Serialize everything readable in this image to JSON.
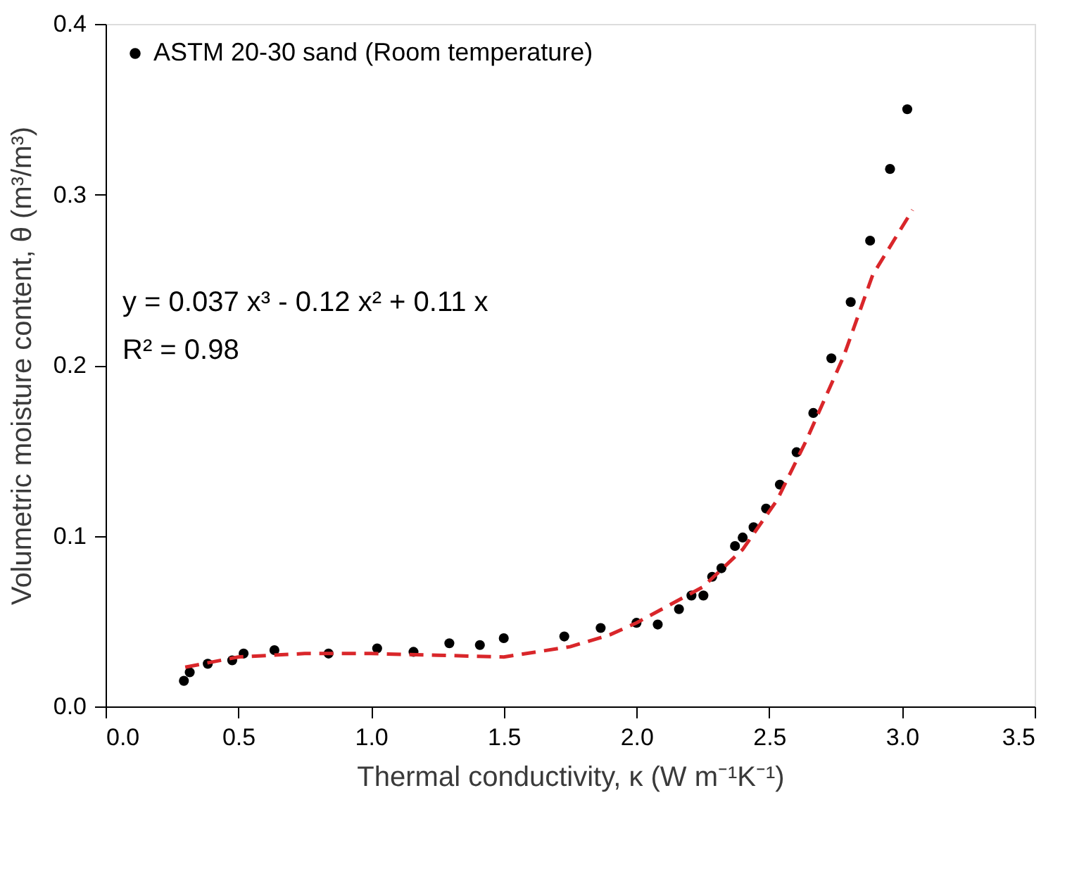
{
  "chart_data": {
    "type": "scatter",
    "xlabel": "Thermal conductivity, κ (W m⁻¹K⁻¹)",
    "ylabel": "Volumetric moisture content, θ (m³/m³)",
    "annotations": [
      "y = 0.037 x³ - 0.12 x² + 0.11 x",
      "R² = 0.98"
    ],
    "xlim": [
      0.0,
      3.5
    ],
    "ylim": [
      0.0,
      0.4
    ],
    "xticks": [
      {
        "value": 0,
        "label": "0.0"
      },
      {
        "value": 0.5,
        "label": "0.5"
      },
      {
        "value": 1,
        "label": "1.0"
      },
      {
        "value": 1.5,
        "label": "1.5"
      },
      {
        "value": 2,
        "label": "2.0"
      },
      {
        "value": 2.5,
        "label": "2.5"
      },
      {
        "value": 3,
        "label": "3.0"
      },
      {
        "value": 3.5,
        "label": "3.5"
      }
    ],
    "yticks": [
      {
        "value": 0,
        "label": "0.0"
      },
      {
        "value": 0.1,
        "label": "0.1"
      },
      {
        "value": 0.2,
        "label": "0.2"
      },
      {
        "value": 0.3,
        "label": "0.3"
      },
      {
        "value": 0.4,
        "label": "0.4"
      }
    ],
    "legend": "top left",
    "grid": false,
    "series": [
      {
        "name": "ASTM 20-30 sand (Room temperature)",
        "marker": "circle",
        "color": "#000000",
        "x": [
          0.295,
          0.317,
          0.385,
          0.477,
          0.52,
          0.636,
          0.84,
          1.023,
          1.16,
          1.295,
          1.41,
          1.5,
          1.728,
          1.865,
          2.0,
          2.08,
          2.16,
          2.207,
          2.252,
          2.285,
          2.32,
          2.371,
          2.4,
          2.441,
          2.488,
          2.54,
          2.603,
          2.666,
          2.734,
          2.807,
          2.88,
          2.955,
          3.02
        ],
        "values": [
          0.015,
          0.02,
          0.025,
          0.027,
          0.031,
          0.033,
          0.031,
          0.034,
          0.032,
          0.037,
          0.036,
          0.04,
          0.041,
          0.046,
          0.049,
          0.048,
          0.057,
          0.065,
          0.065,
          0.076,
          0.081,
          0.094,
          0.099,
          0.105,
          0.116,
          0.13,
          0.149,
          0.172,
          0.204,
          0.237,
          0.273,
          0.315,
          0.35
        ]
      },
      {
        "type": "line",
        "line_style": "dashed",
        "color": "#d9262a",
        "x": [
          0.3,
          0.5,
          0.75,
          1.0,
          1.25,
          1.5,
          1.75,
          1.9,
          2.0,
          2.25,
          2.4,
          2.53,
          2.64,
          2.78,
          2.89,
          3.04
        ],
        "values": [
          0.023,
          0.029,
          0.031,
          0.031,
          0.03,
          0.029,
          0.035,
          0.042,
          0.049,
          0.07,
          0.092,
          0.121,
          0.156,
          0.205,
          0.253,
          0.291
        ]
      }
    ]
  }
}
